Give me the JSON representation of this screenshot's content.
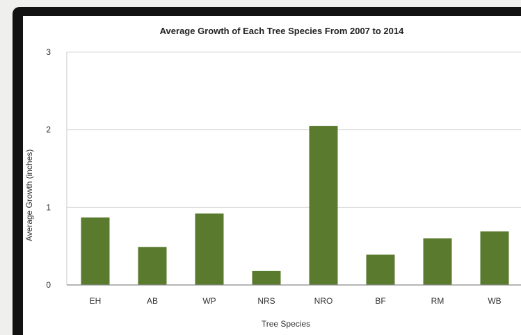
{
  "chart_data": {
    "type": "bar",
    "title": "Average Growth of Each Tree Species From 2007 to 2014",
    "xlabel": "Tree Species",
    "ylabel": "Average Growth (inches)",
    "categories": [
      "EH",
      "AB",
      "WP",
      "NRS",
      "NRO",
      "BF",
      "RM",
      "WB"
    ],
    "values": [
      0.87,
      0.49,
      0.92,
      0.18,
      2.05,
      0.39,
      0.6,
      0.69
    ],
    "ylim": [
      0,
      3
    ],
    "yticks": [
      "0",
      "1",
      "2",
      "3"
    ],
    "grid": true,
    "legend": "none",
    "bar_color": "#5a7a2e",
    "grid_color": "#d9d9d9"
  }
}
